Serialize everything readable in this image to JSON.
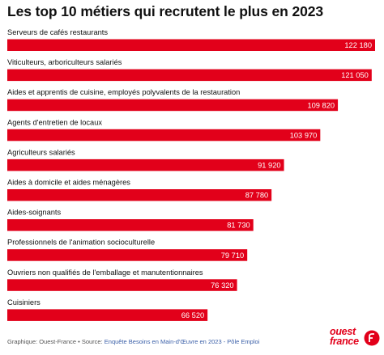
{
  "title": "Les top 10 métiers qui recrutent le plus en 2023",
  "footer": {
    "prefix": "Graphique: Ouest-France • Source: ",
    "source": "Enquête Besoins en Main-d'Œuvre en 2023 - Pôle Emploi"
  },
  "logo": {
    "line1": "ouest",
    "line2": "france"
  },
  "colors": {
    "bar": "#e2001a",
    "logo": "#e2001a"
  },
  "chart_data": {
    "type": "bar",
    "orientation": "horizontal",
    "title": "Les top 10 métiers qui recrutent le plus en 2023",
    "categories": [
      "Serveurs de cafés restaurants",
      "Viticulteurs, arboriculteurs salariés",
      "Aides et apprentis de cuisine, employés polyvalents de la restauration",
      "Agents d'entretien de locaux",
      "Agriculteurs salariés",
      "Aides à domicile et aides ménagères",
      "Aides-soignants",
      "Professionnels de l'animation socioculturelle",
      "Ouvriers non qualifiés de l'emballage et manutentionnaires",
      "Cuisiniers"
    ],
    "values": [
      122180,
      121050,
      109820,
      103970,
      91920,
      87780,
      81730,
      79710,
      76320,
      66520
    ],
    "value_labels": [
      "122 180",
      "121 050",
      "109 820",
      "103 970",
      "91 920",
      "87 780",
      "81 730",
      "79 710",
      "76 320",
      "66 520"
    ],
    "xlim": [
      0,
      122180
    ],
    "grid": false,
    "legend": "none"
  }
}
